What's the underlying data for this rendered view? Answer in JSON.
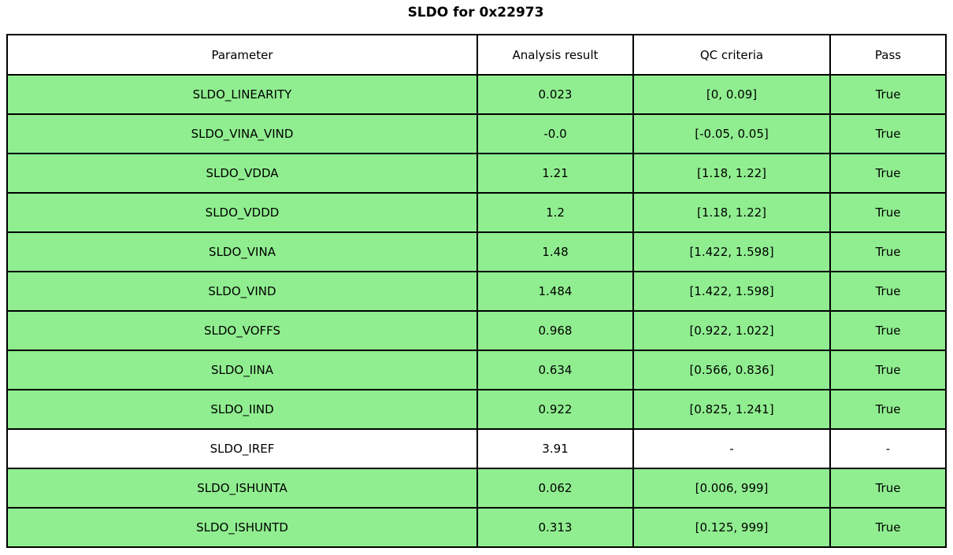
{
  "chart_data": {
    "type": "table",
    "title": "SLDO for 0x22973",
    "columns": [
      "Parameter",
      "Analysis result",
      "QC criteria",
      "Pass"
    ],
    "rows": [
      [
        "SLDO_LINEARITY",
        "0.023",
        "[0, 0.09]",
        "True"
      ],
      [
        "SLDO_VINA_VIND",
        "-0.0",
        "[-0.05, 0.05]",
        "True"
      ],
      [
        "SLDO_VDDA",
        "1.21",
        "[1.18, 1.22]",
        "True"
      ],
      [
        "SLDO_VDDD",
        "1.2",
        "[1.18, 1.22]",
        "True"
      ],
      [
        "SLDO_VINA",
        "1.48",
        "[1.422, 1.598]",
        "True"
      ],
      [
        "SLDO_VIND",
        "1.484",
        "[1.422, 1.598]",
        "True"
      ],
      [
        "SLDO_VOFFS",
        "0.968",
        "[0.922, 1.022]",
        "True"
      ],
      [
        "SLDO_IINA",
        "0.634",
        "[0.566, 0.836]",
        "True"
      ],
      [
        "SLDO_IIND",
        "0.922",
        "[0.825, 1.241]",
        "True"
      ],
      [
        "SLDO_IREF",
        "3.91",
        "-",
        "-"
      ],
      [
        "SLDO_ISHUNTA",
        "0.062",
        "[0.006, 999]",
        "True"
      ],
      [
        "SLDO_ISHUNTD",
        "0.313",
        "[0.125, 999]",
        "True"
      ]
    ],
    "row_highlight": [
      "green",
      "green",
      "green",
      "green",
      "green",
      "green",
      "green",
      "green",
      "green",
      "white",
      "green",
      "green"
    ],
    "legend_position": "none",
    "grid": "full-borders"
  },
  "colors": {
    "pass_row_green": "#90ee90",
    "neutral_row_white": "#ffffff",
    "border_black": "#000000",
    "text_black": "#000000",
    "background_white": "#ffffff"
  }
}
